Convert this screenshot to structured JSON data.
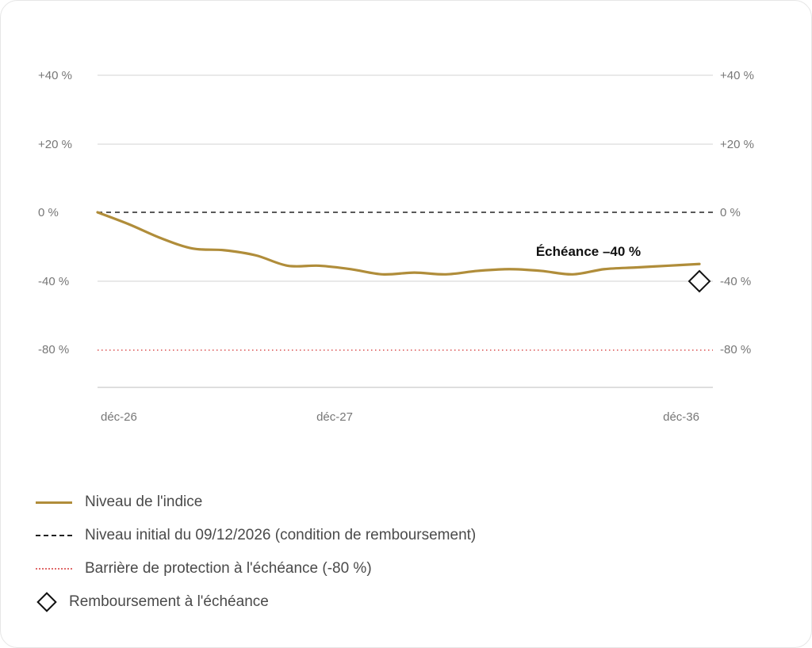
{
  "chart_data": {
    "type": "line",
    "y_ticks_left": [
      "+40 %",
      "+20 %",
      "0 %",
      "-40 %",
      "-80 %"
    ],
    "y_ticks_right": [
      "+40 %",
      "+20 %",
      "0 %",
      "-40 %",
      "-80 %"
    ],
    "x_ticks": [
      "déc-26",
      "déc-27",
      "déc-36"
    ],
    "series": [
      {
        "name": "Niveau de l'indice",
        "color": "#b08d3a",
        "values": [
          0,
          -7,
          -15,
          -21,
          -22,
          -25,
          -31,
          -31,
          -33,
          -36,
          -35,
          -36,
          -34,
          -33,
          -34,
          -36,
          -33,
          -32,
          -31,
          -30
        ]
      }
    ],
    "reference_lines": [
      {
        "name": "Niveau initial du 09/12/2026 (condition de remboursement)",
        "value": 0,
        "style": "dashed",
        "color": "#222222"
      },
      {
        "name": "Barrière de protection à l'échéance (-80 %)",
        "value": -80,
        "style": "dotted",
        "color": "#e06a6a"
      }
    ],
    "marker": {
      "name": "Remboursement à l'échéance",
      "value": -40,
      "shape": "diamond"
    },
    "annotation": "Échéance –40 %",
    "legend_position": "bottom-left",
    "grid": true
  },
  "legend": {
    "items": [
      "Niveau de l'indice",
      "Niveau initial du 09/12/2026 (condition de remboursement)",
      "Barrière de protection à l'échéance (-80 %)",
      "Remboursement à l'échéance"
    ]
  }
}
